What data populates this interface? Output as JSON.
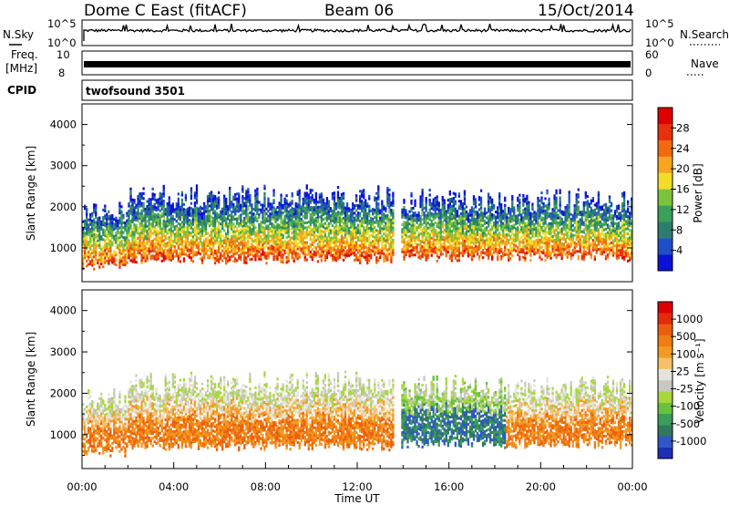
{
  "header": {
    "title": "Dome C East (fitACF)",
    "beam": "Beam 06",
    "date": "15/Oct/2014"
  },
  "strips": {
    "nsky_label": "N.Sky",
    "nsky_top": "10^5",
    "nsky_bottom": "10^0",
    "nsearch_label": "N.Search",
    "nsearch_top": "10^5",
    "nsearch_bottom": "10^0",
    "freq_label": "Freq.",
    "freq_unit": "[MHz]",
    "freq_top": "10",
    "freq_bottom": "8",
    "nave_label": "Nave",
    "nave_top": "60",
    "nave_bottom": "0",
    "cpid_label": "CPID",
    "cpid_value": "twofsound  3501"
  },
  "chart_data": [
    {
      "type": "heatmap",
      "name": "power",
      "xlabel": "",
      "ylabel": "Slant Range [km]",
      "x_range_hours": [
        0,
        24
      ],
      "y_range_km": [
        180,
        4500
      ],
      "y_ticks": [
        "1000",
        "2000",
        "3000",
        "4000"
      ],
      "colorbar": {
        "label": "Power [dB]",
        "range": [
          0,
          32
        ],
        "ticks": [
          "4",
          "8",
          "12",
          "16",
          "20",
          "24",
          "28"
        ],
        "colors": [
          "#0a12d8",
          "#1f4fc8",
          "#2d7d6e",
          "#3aa05a",
          "#7dc23c",
          "#f1dd28",
          "#f7a51e",
          "#f06a10",
          "#e8300c",
          "#dd0000"
        ]
      }
    },
    {
      "type": "heatmap",
      "name": "velocity",
      "xlabel": "Time UT",
      "ylabel": "Slant Range [km]",
      "x_range_hours": [
        0,
        24
      ],
      "x_ticks": [
        "00:00",
        "04:00",
        "08:00",
        "12:00",
        "16:00",
        "20:00",
        "00:00"
      ],
      "y_range_km": [
        180,
        4500
      ],
      "y_ticks": [
        "1000",
        "2000",
        "3000",
        "4000"
      ],
      "colorbar": {
        "label": "Velocity [m s⁻¹]",
        "ticks": [
          "1000",
          "500",
          "100",
          "25",
          "-25",
          "-100",
          "-500",
          "-1000"
        ],
        "colors": [
          "#1d2fb5",
          "#2f57c9",
          "#2f7a5e",
          "#3c9d5a",
          "#68c23d",
          "#a8d83a",
          "#c9c9c0",
          "#e4e4dc",
          "#f5c06a",
          "#f39a22",
          "#f07e12",
          "#ec5e0e",
          "#e32a0c",
          "#dc0000"
        ]
      }
    }
  ]
}
